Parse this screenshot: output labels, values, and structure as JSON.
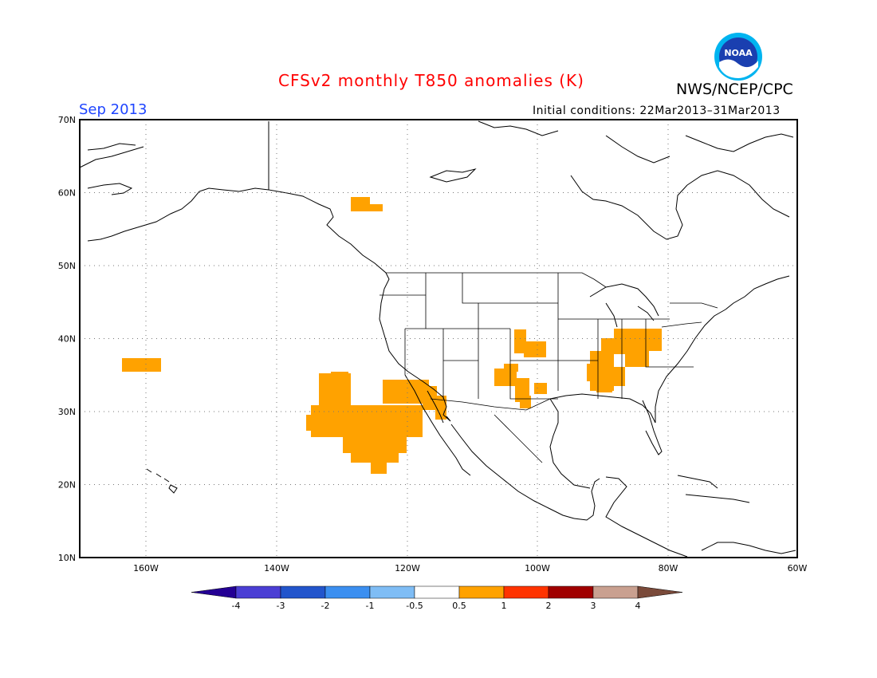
{
  "title": "CFSv2 monthly T850 anomalies (K)",
  "title_color": "#ff0000",
  "org": "NWS/NCEP/CPC",
  "month": "Sep 2013",
  "month_color": "#1f45ff",
  "init_conditions": "Initial conditions: 22Mar2013–31Mar2013",
  "logo_text": "NOAA",
  "lat_labels": [
    "70N",
    "60N",
    "50N",
    "40N",
    "30N",
    "20N",
    "10N"
  ],
  "lon_labels": [
    "160W",
    "140W",
    "120W",
    "100W",
    "80W",
    "60W"
  ],
  "colorbar": {
    "ticks": [
      "-4",
      "-3",
      "-2",
      "-1",
      "-0.5",
      "0.5",
      "1",
      "2",
      "3",
      "4"
    ],
    "colors": [
      "#240094",
      "#4b3ed4",
      "#2255cc",
      "#3b8ff0",
      "#7fbdf5",
      "#ffffff",
      "#ffa200",
      "#ff3300",
      "#a00000",
      "#c9a090",
      "#7a4a3a"
    ]
  },
  "anomaly_color": "#ffa200"
}
